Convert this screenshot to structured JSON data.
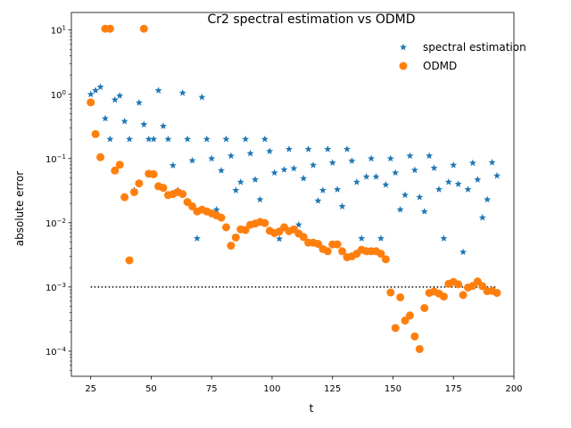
{
  "chart_data": {
    "type": "scatter",
    "title": "Cr2 spectral estimation vs ODMD",
    "xlabel": "t",
    "ylabel": "absolute error",
    "xlim": [
      17,
      200
    ],
    "ylim": [
      4.07e-05,
      18.8
    ],
    "yscale": "log",
    "xticks": [
      25,
      50,
      75,
      100,
      125,
      150,
      175,
      200
    ],
    "yticks": [
      0.0001,
      0.001,
      0.01,
      0.1,
      1,
      10
    ],
    "ytick_labels": [
      [
        "10",
        "−4"
      ],
      [
        "10",
        "−3"
      ],
      [
        "10",
        "−2"
      ],
      [
        "10",
        "−1"
      ],
      [
        "10",
        "0"
      ],
      [
        "10",
        "1"
      ]
    ],
    "legend_position": "top-right",
    "colors": {
      "spectral": "#1f77b4",
      "odmd": "#ff7f0e",
      "threshold": "#000000"
    },
    "threshold": {
      "y": 0.001,
      "x_range": [
        25,
        193
      ],
      "style": "dotted"
    },
    "series": [
      {
        "name": "spectral estimation",
        "marker": "star",
        "x": [
          25,
          27,
          29,
          31,
          33,
          35,
          37,
          39,
          41,
          43,
          45,
          47,
          49,
          51,
          53,
          55,
          57,
          59,
          61,
          63,
          65,
          67,
          69,
          71,
          73,
          75,
          77,
          79,
          81,
          83,
          85,
          87,
          89,
          91,
          93,
          95,
          97,
          99,
          101,
          103,
          105,
          107,
          109,
          111,
          113,
          115,
          117,
          119,
          121,
          123,
          125,
          127,
          129,
          131,
          133,
          135,
          137,
          139,
          141,
          143,
          145,
          147,
          149,
          151,
          153,
          155,
          157,
          159,
          161,
          163,
          165,
          167,
          169,
          171,
          173,
          175,
          177,
          179,
          181,
          183,
          185,
          187,
          189,
          191,
          193
        ],
        "y": [
          1.0,
          1.15,
          1.3,
          0.42,
          0.2,
          0.82,
          0.95,
          0.38,
          0.2,
          0.032,
          0.74,
          0.34,
          0.2,
          0.2,
          1.15,
          0.32,
          0.2,
          0.078,
          0.032,
          1.05,
          0.2,
          0.093,
          0.0057,
          0.9,
          0.2,
          0.1,
          0.016,
          0.065,
          0.2,
          0.11,
          0.032,
          0.043,
          0.2,
          0.12,
          0.047,
          0.023,
          0.2,
          0.13,
          0.06,
          0.0056,
          0.067,
          0.14,
          0.07,
          0.0093,
          0.049,
          0.14,
          0.079,
          0.022,
          0.032,
          0.14,
          0.086,
          0.033,
          0.018,
          0.14,
          0.092,
          0.043,
          0.0057,
          0.052,
          0.1,
          0.052,
          0.0057,
          0.039,
          0.1,
          0.06,
          0.016,
          0.027,
          0.11,
          0.066,
          0.025,
          0.015,
          0.11,
          0.071,
          0.033,
          0.0057,
          0.043,
          0.079,
          0.04,
          0.0035,
          0.033,
          0.085,
          0.047,
          0.012,
          0.023,
          0.087,
          0.054
        ]
      },
      {
        "name": "ODMD",
        "marker": "circle",
        "x": [
          25,
          27,
          29,
          31,
          33,
          35,
          37,
          39,
          41,
          43,
          45,
          47,
          49,
          51,
          53,
          55,
          57,
          59,
          61,
          63,
          65,
          67,
          69,
          71,
          73,
          75,
          77,
          79,
          81,
          83,
          85,
          87,
          89,
          91,
          93,
          95,
          97,
          99,
          101,
          103,
          105,
          107,
          109,
          111,
          113,
          115,
          117,
          119,
          121,
          123,
          125,
          127,
          129,
          131,
          133,
          135,
          137,
          139,
          141,
          143,
          145,
          147,
          149,
          151,
          153,
          155,
          157,
          159,
          161,
          163,
          165,
          167,
          169,
          171,
          173,
          175,
          177,
          179,
          181,
          183,
          185,
          187,
          189,
          191,
          193
        ],
        "y": [
          0.75,
          0.24,
          0.105,
          10.5,
          10.5,
          0.065,
          0.08,
          0.025,
          0.0026,
          0.03,
          0.041,
          10.5,
          0.058,
          0.057,
          0.037,
          0.035,
          0.027,
          0.028,
          0.03,
          0.028,
          0.021,
          0.018,
          0.015,
          0.016,
          0.015,
          0.014,
          0.013,
          0.012,
          0.0085,
          0.0044,
          0.0059,
          0.0079,
          0.0077,
          0.0093,
          0.0097,
          0.0103,
          0.0099,
          0.0075,
          0.0069,
          0.0073,
          0.0085,
          0.0074,
          0.0079,
          0.0068,
          0.006,
          0.0049,
          0.0049,
          0.0047,
          0.0039,
          0.0036,
          0.0046,
          0.0046,
          0.0036,
          0.0029,
          0.003,
          0.0033,
          0.0038,
          0.0036,
          0.0036,
          0.0036,
          0.0033,
          0.0027,
          0.00082,
          0.00023,
          0.00069,
          0.0003,
          0.00036,
          0.00017,
          0.000108,
          0.00047,
          0.00081,
          0.00085,
          0.00079,
          0.00071,
          0.00112,
          0.0012,
          0.0011,
          0.00075,
          0.00098,
          0.00104,
          0.00122,
          0.00103,
          0.00086,
          0.00087,
          0.00081
        ]
      }
    ]
  }
}
